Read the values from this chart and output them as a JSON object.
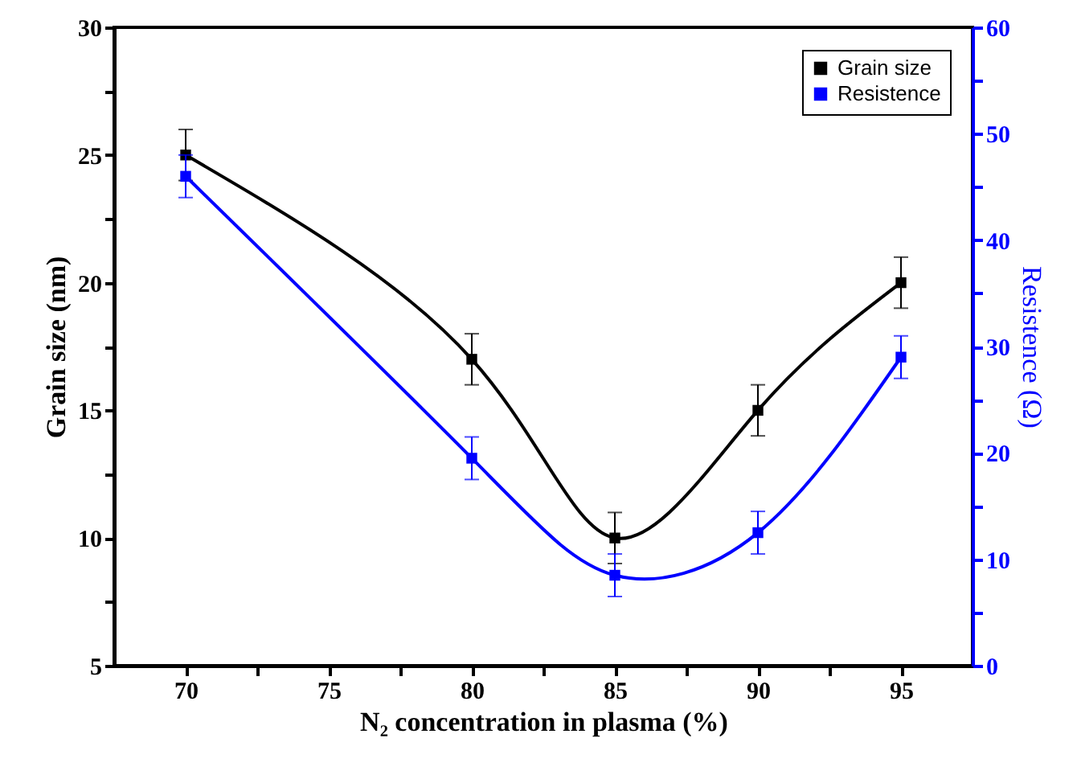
{
  "chart_data": {
    "type": "line",
    "xlabel": "N₂ concentration in plasma (%)",
    "ylabel": "Grain size (nm)",
    "y2label": "Resistence (Ω)",
    "x": [
      70,
      80,
      85,
      90,
      95
    ],
    "xlim": [
      67.5,
      97.5
    ],
    "xticks": [
      70,
      {
        "value": 72.5,
        "label": null
      },
      75,
      {
        "value": 77.5,
        "label": null
      },
      80,
      {
        "value": 82.5,
        "label": null
      },
      85,
      {
        "value": 87.5,
        "label": null
      },
      90,
      {
        "value": 92.5,
        "label": null
      },
      95
    ],
    "ylim": [
      5,
      30
    ],
    "yticks": [
      5,
      {
        "value": 7.5,
        "label": null
      },
      10,
      {
        "value": 12.5,
        "label": null
      },
      15,
      {
        "value": 17.5,
        "label": null
      },
      20,
      {
        "value": 22.5,
        "label": null
      },
      25,
      {
        "value": 27.5,
        "label": null
      },
      30
    ],
    "y2lim": [
      0,
      60
    ],
    "y2ticks": [
      0,
      {
        "value": 5,
        "label": null
      },
      10,
      {
        "value": 15,
        "label": null
      },
      20,
      {
        "value": 25,
        "label": null
      },
      30,
      {
        "value": 35,
        "label": null
      },
      40,
      {
        "value": 45,
        "label": null
      },
      50,
      {
        "value": 55,
        "label": null
      },
      60
    ],
    "series": [
      {
        "name": "Grain size",
        "color": "#000000",
        "values": [
          25,
          17,
          10,
          15,
          20
        ],
        "errors": [
          1,
          1,
          1,
          1,
          1
        ]
      },
      {
        "name": "Resistence",
        "color": "#0000ff",
        "axis": "y2",
        "values": [
          46,
          19.5,
          8.5,
          12.5,
          29
        ],
        "errors": [
          2,
          2,
          2,
          2,
          2
        ]
      }
    ],
    "marker": "square",
    "line_style": "solid",
    "legend": "top right",
    "grid": false
  }
}
